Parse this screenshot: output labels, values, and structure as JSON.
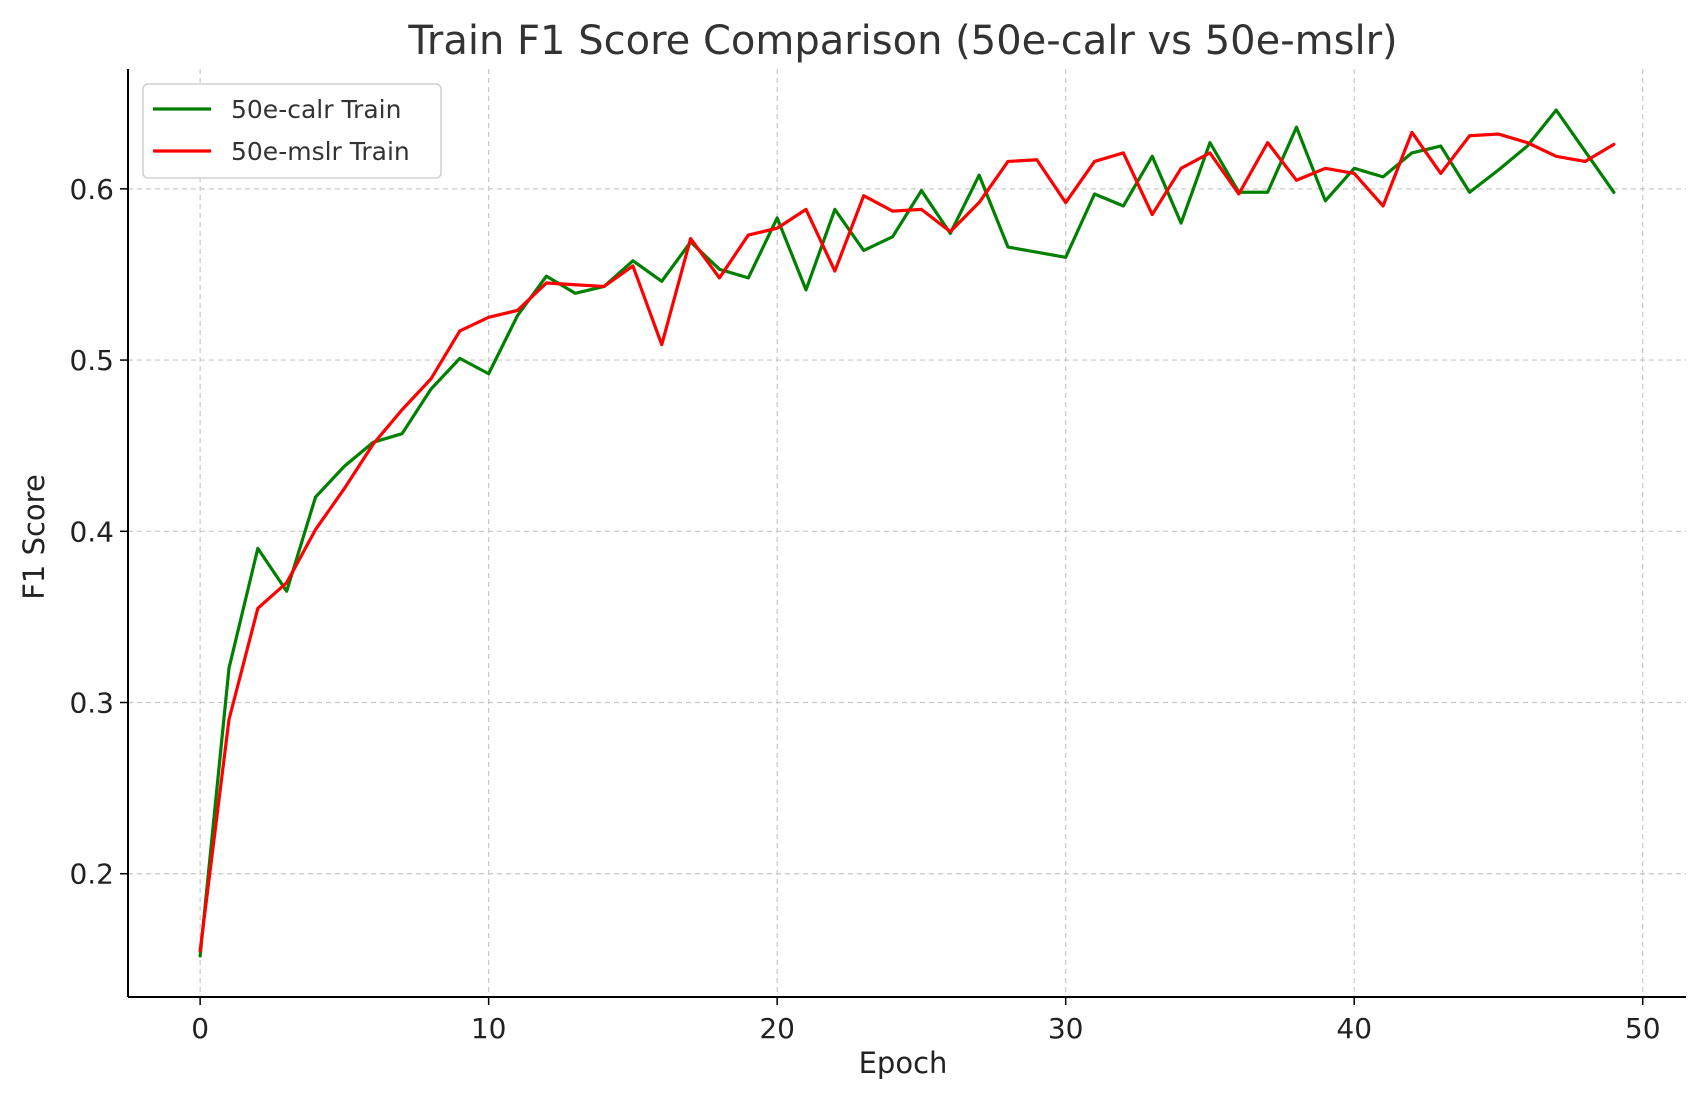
{
  "chart_data": {
    "type": "line",
    "title": "Train F1 Score Comparison (50e-calr vs 50e-mslr)",
    "xlabel": "Epoch",
    "ylabel": "F1 Score",
    "xlim": [
      -2.5,
      51.5
    ],
    "ylim": [
      0.128,
      0.67
    ],
    "xticks": [
      0,
      10,
      20,
      30,
      40,
      50
    ],
    "yticks": [
      0.2,
      0.3,
      0.4,
      0.5,
      0.6
    ],
    "xtick_labels": [
      "0",
      "10",
      "20",
      "30",
      "40",
      "50"
    ],
    "ytick_labels": [
      "0.2",
      "0.3",
      "0.4",
      "0.5",
      "0.6"
    ],
    "grid": true,
    "legend_position": "top-left",
    "x": [
      0,
      1,
      2,
      3,
      4,
      5,
      6,
      7,
      8,
      9,
      10,
      11,
      12,
      13,
      14,
      15,
      16,
      17,
      18,
      19,
      20,
      21,
      22,
      23,
      24,
      25,
      26,
      27,
      28,
      29,
      30,
      31,
      32,
      33,
      34,
      35,
      36,
      37,
      38,
      39,
      40,
      41,
      42,
      43,
      44,
      45,
      46,
      47,
      48,
      49
    ],
    "series": [
      {
        "name": "50e-calr Train",
        "color": "#008000",
        "values": [
          0.152,
          0.32,
          0.39,
          0.365,
          0.42,
          0.438,
          0.452,
          0.457,
          0.483,
          0.501,
          0.492,
          0.526,
          0.549,
          0.539,
          0.543,
          0.558,
          0.546,
          0.569,
          0.553,
          0.548,
          0.583,
          0.541,
          0.588,
          0.564,
          0.572,
          0.599,
          0.574,
          0.608,
          0.566,
          0.563,
          0.56,
          0.597,
          0.59,
          0.619,
          0.58,
          0.627,
          0.598,
          0.598,
          0.636,
          0.593,
          0.612,
          0.607,
          0.621,
          0.625,
          0.598,
          0.611,
          0.625,
          0.646,
          0.622,
          0.598
        ]
      },
      {
        "name": "50e-mslr Train",
        "color": "#ff0000",
        "values": [
          0.155,
          0.29,
          0.355,
          0.37,
          0.401,
          0.425,
          0.451,
          0.471,
          0.489,
          0.517,
          0.525,
          0.529,
          0.545,
          0.544,
          0.543,
          0.555,
          0.509,
          0.571,
          0.548,
          0.573,
          0.577,
          0.588,
          0.552,
          0.596,
          0.587,
          0.588,
          0.575,
          0.592,
          0.616,
          0.617,
          0.592,
          0.616,
          0.621,
          0.585,
          0.612,
          0.621,
          0.597,
          0.627,
          0.605,
          0.612,
          0.609,
          0.59,
          0.633,
          0.609,
          0.631,
          0.632,
          0.627,
          0.619,
          0.616,
          0.626
        ]
      }
    ]
  }
}
